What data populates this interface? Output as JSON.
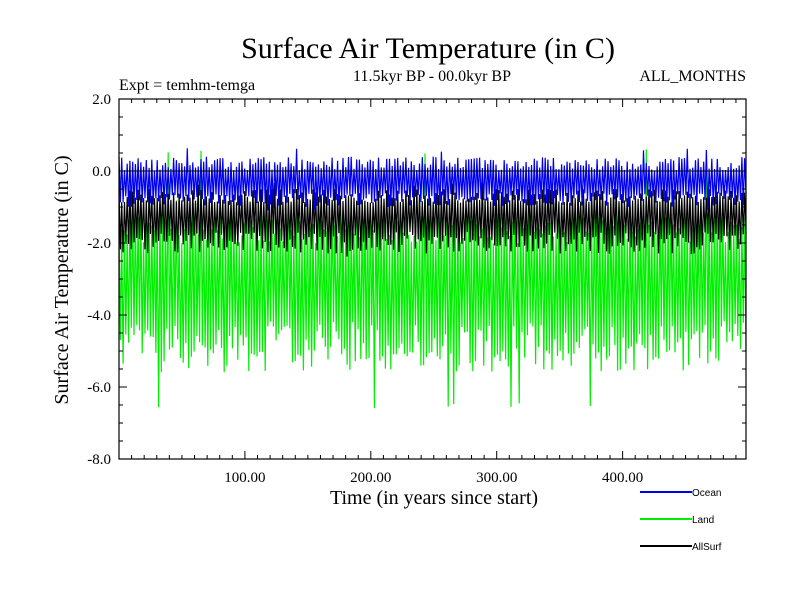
{
  "chart_data": {
    "type": "line",
    "title": "Surface Air Temperature (in C)",
    "subtitle": "11.5kyr BP - 00.0kyr BP",
    "experiment_label": "Expt = temhm-temga",
    "months_label": "ALL_MONTHS",
    "xlabel": "Time (in years since start)",
    "ylabel": "Surface Air Temperature (in C)",
    "xlim": [
      0,
      498
    ],
    "ylim": [
      -8.0,
      2.0
    ],
    "xticks": [
      100,
      200,
      300,
      400
    ],
    "xtick_labels": [
      "100.00",
      "200.00",
      "300.00",
      "400.00"
    ],
    "yticks": [
      2.0,
      0.0,
      -2.0,
      -4.0,
      -6.0,
      -8.0
    ],
    "ytick_labels": [
      "2.0",
      "0.0",
      "-2.0",
      "-4.0",
      "-6.0",
      "-8.0"
    ],
    "reference_line_y": 0.0,
    "n_points": 460,
    "series": [
      {
        "name": "Land",
        "color": "#00ee00",
        "mean": -3.0,
        "band_low": -5.6,
        "band_high": -0.8,
        "observed_min": -6.6,
        "observed_max": 0.6
      },
      {
        "name": "Ocean",
        "color": "#0000ee",
        "mean": -0.3,
        "band_low": -1.0,
        "band_high": 0.4,
        "observed_min": -1.1,
        "observed_max": 0.65
      },
      {
        "name": "AllSurf",
        "color": "#000000",
        "mean": -1.2,
        "band_low": -2.3,
        "band_high": -0.5,
        "observed_min": -2.4,
        "observed_max": -0.3
      }
    ],
    "legend": [
      "Ocean",
      "Land",
      "AllSurf"
    ]
  }
}
